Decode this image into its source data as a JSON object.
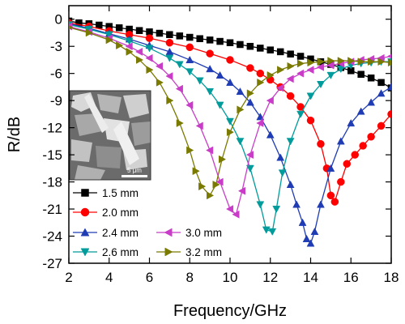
{
  "chart_data": {
    "type": "line",
    "title": "",
    "xlabel": "Frequency/GHz",
    "ylabel": "R/dB",
    "xlim": [
      2,
      18
    ],
    "ylim": [
      -27,
      1.5
    ],
    "xticks": [
      2,
      4,
      6,
      8,
      10,
      12,
      14,
      16,
      18
    ],
    "yticks": [
      0,
      -3,
      -6,
      -9,
      -12,
      -15,
      -18,
      -21,
      -24,
      -27
    ],
    "legend_position": "bottom-left",
    "grid": false,
    "inset": {
      "type": "micrograph",
      "scale_bar_label": "5 μm"
    },
    "series": [
      {
        "name": "1.5 mm",
        "color": "#000000",
        "marker": "square",
        "points": [
          [
            2,
            -0.2
          ],
          [
            2.5,
            -0.4
          ],
          [
            3,
            -0.5
          ],
          [
            3.5,
            -0.65
          ],
          [
            4,
            -0.8
          ],
          [
            4.5,
            -0.95
          ],
          [
            5,
            -1.1
          ],
          [
            5.5,
            -1.25
          ],
          [
            6,
            -1.4
          ],
          [
            6.5,
            -1.55
          ],
          [
            7,
            -1.7
          ],
          [
            7.5,
            -1.85
          ],
          [
            8,
            -2.0
          ],
          [
            8.5,
            -2.15
          ],
          [
            9,
            -2.3
          ],
          [
            9.5,
            -2.45
          ],
          [
            10,
            -2.6
          ],
          [
            10.5,
            -2.8
          ],
          [
            11,
            -3.0
          ],
          [
            11.5,
            -3.2
          ],
          [
            12,
            -3.4
          ],
          [
            12.5,
            -3.6
          ],
          [
            13,
            -3.85
          ],
          [
            13.5,
            -4.1
          ],
          [
            14,
            -4.4
          ],
          [
            14.5,
            -4.7
          ],
          [
            15,
            -5.0
          ],
          [
            15.5,
            -5.35
          ],
          [
            16,
            -5.7
          ],
          [
            16.5,
            -6.1
          ],
          [
            17,
            -6.5
          ],
          [
            17.5,
            -7.0
          ],
          [
            18,
            -7.6
          ]
        ]
      },
      {
        "name": "2.0 mm",
        "color": "#ff0000",
        "marker": "circle",
        "points": [
          [
            2,
            -0.4
          ],
          [
            3,
            -0.8
          ],
          [
            4,
            -1.3
          ],
          [
            5,
            -1.7
          ],
          [
            6,
            -2.1
          ],
          [
            7,
            -2.6
          ],
          [
            8,
            -3.1
          ],
          [
            9,
            -3.8
          ],
          [
            10,
            -4.5
          ],
          [
            11,
            -5.4
          ],
          [
            11.5,
            -6.0
          ],
          [
            12,
            -6.7
          ],
          [
            12.5,
            -7.5
          ],
          [
            13,
            -8.5
          ],
          [
            13.5,
            -9.7
          ],
          [
            14,
            -11.2
          ],
          [
            14.5,
            -13.8
          ],
          [
            14.8,
            -16.5
          ],
          [
            15.0,
            -19.5
          ],
          [
            15.2,
            -20.2
          ],
          [
            15.5,
            -18.0
          ],
          [
            15.8,
            -16.0
          ],
          [
            16.2,
            -15.0
          ],
          [
            16.6,
            -14.0
          ],
          [
            17,
            -13.0
          ],
          [
            17.5,
            -11.8
          ],
          [
            18,
            -10.5
          ]
        ]
      },
      {
        "name": "2.4 mm",
        "color": "#1f3cb4",
        "marker": "triangle-up",
        "points": [
          [
            2,
            -0.5
          ],
          [
            3,
            -1.0
          ],
          [
            4,
            -1.6
          ],
          [
            5,
            -2.2
          ],
          [
            6,
            -2.9
          ],
          [
            7,
            -3.6
          ],
          [
            8,
            -4.5
          ],
          [
            9,
            -5.5
          ],
          [
            9.5,
            -6.2
          ],
          [
            10,
            -7.0
          ],
          [
            10.5,
            -8.0
          ],
          [
            11,
            -9.2
          ],
          [
            11.5,
            -10.8
          ],
          [
            12,
            -12.8
          ],
          [
            12.5,
            -15.3
          ],
          [
            13,
            -18.3
          ],
          [
            13.3,
            -20.5
          ],
          [
            13.6,
            -22.5
          ],
          [
            13.8,
            -24.3
          ],
          [
            14.0,
            -24.8
          ],
          [
            14.2,
            -23.5
          ],
          [
            14.5,
            -20.5
          ],
          [
            15,
            -16.5
          ],
          [
            15.5,
            -13.5
          ],
          [
            16,
            -11.5
          ],
          [
            16.5,
            -10.2
          ],
          [
            17,
            -9.2
          ],
          [
            17.5,
            -8.2
          ],
          [
            18,
            -7.5
          ]
        ]
      },
      {
        "name": "2.6 mm",
        "color": "#009b9b",
        "marker": "triangle-down",
        "points": [
          [
            2,
            -0.6
          ],
          [
            3,
            -1.1
          ],
          [
            4,
            -1.7
          ],
          [
            5,
            -2.4
          ],
          [
            6,
            -3.2
          ],
          [
            7,
            -4.3
          ],
          [
            7.5,
            -5.0
          ],
          [
            8,
            -5.8
          ],
          [
            8.5,
            -6.8
          ],
          [
            9,
            -8.0
          ],
          [
            9.5,
            -9.5
          ],
          [
            10,
            -11.3
          ],
          [
            10.5,
            -13.5
          ],
          [
            11,
            -16.5
          ],
          [
            11.5,
            -20.5
          ],
          [
            11.8,
            -23.3
          ],
          [
            12.1,
            -23.5
          ],
          [
            12.3,
            -21.0
          ],
          [
            12.6,
            -17.0
          ],
          [
            13,
            -13.5
          ],
          [
            13.5,
            -10.5
          ],
          [
            14,
            -8.5
          ],
          [
            14.5,
            -7.2
          ],
          [
            15,
            -6.2
          ],
          [
            15.5,
            -5.5
          ],
          [
            16,
            -5.1
          ],
          [
            16.5,
            -4.9
          ],
          [
            17,
            -4.8
          ],
          [
            17.5,
            -4.7
          ],
          [
            18,
            -4.7
          ]
        ]
      },
      {
        "name": "3.0 mm",
        "color": "#c83cc8",
        "marker": "triangle-left",
        "points": [
          [
            2,
            -0.8
          ],
          [
            3,
            -1.4
          ],
          [
            4,
            -2.1
          ],
          [
            5,
            -3.0
          ],
          [
            5.5,
            -3.6
          ],
          [
            6,
            -4.3
          ],
          [
            6.5,
            -5.2
          ],
          [
            7,
            -6.3
          ],
          [
            7.5,
            -7.7
          ],
          [
            8,
            -9.5
          ],
          [
            8.5,
            -11.8
          ],
          [
            9,
            -14.5
          ],
          [
            9.5,
            -18.0
          ],
          [
            10,
            -21.0
          ],
          [
            10.3,
            -21.6
          ],
          [
            10.6,
            -19.0
          ],
          [
            11,
            -15.0
          ],
          [
            11.5,
            -11.5
          ],
          [
            12,
            -9.0
          ],
          [
            12.5,
            -7.6
          ],
          [
            13,
            -6.6
          ],
          [
            13.5,
            -6.0
          ],
          [
            14,
            -5.6
          ],
          [
            14.5,
            -5.3
          ],
          [
            15,
            -5.1
          ],
          [
            15.5,
            -4.9
          ],
          [
            16,
            -4.7
          ],
          [
            16.5,
            -4.5
          ],
          [
            17,
            -4.4
          ],
          [
            17.5,
            -4.3
          ],
          [
            18,
            -4.1
          ]
        ]
      },
      {
        "name": "3.2 mm",
        "color": "#7a7a00",
        "marker": "triangle-right",
        "points": [
          [
            2,
            -0.9
          ],
          [
            3,
            -1.5
          ],
          [
            4,
            -2.3
          ],
          [
            4.5,
            -2.9
          ],
          [
            5,
            -3.6
          ],
          [
            5.5,
            -4.5
          ],
          [
            6,
            -5.6
          ],
          [
            6.5,
            -7.0
          ],
          [
            7,
            -9.0
          ],
          [
            7.5,
            -11.5
          ],
          [
            8,
            -14.5
          ],
          [
            8.3,
            -16.8
          ],
          [
            8.6,
            -18.5
          ],
          [
            9.0,
            -19.5
          ],
          [
            9.3,
            -18.3
          ],
          [
            9.6,
            -15.5
          ],
          [
            10,
            -12.5
          ],
          [
            10.5,
            -10.0
          ],
          [
            11,
            -8.2
          ],
          [
            11.5,
            -7.0
          ],
          [
            12,
            -6.2
          ],
          [
            12.5,
            -5.6
          ],
          [
            13,
            -5.2
          ],
          [
            13.5,
            -4.9
          ],
          [
            14,
            -4.8
          ],
          [
            14.5,
            -4.7
          ],
          [
            15,
            -4.6
          ],
          [
            15.5,
            -4.6
          ],
          [
            16,
            -4.6
          ],
          [
            16.5,
            -4.7
          ],
          [
            17,
            -4.7
          ],
          [
            17.5,
            -4.7
          ],
          [
            18,
            -4.8
          ]
        ]
      }
    ]
  }
}
